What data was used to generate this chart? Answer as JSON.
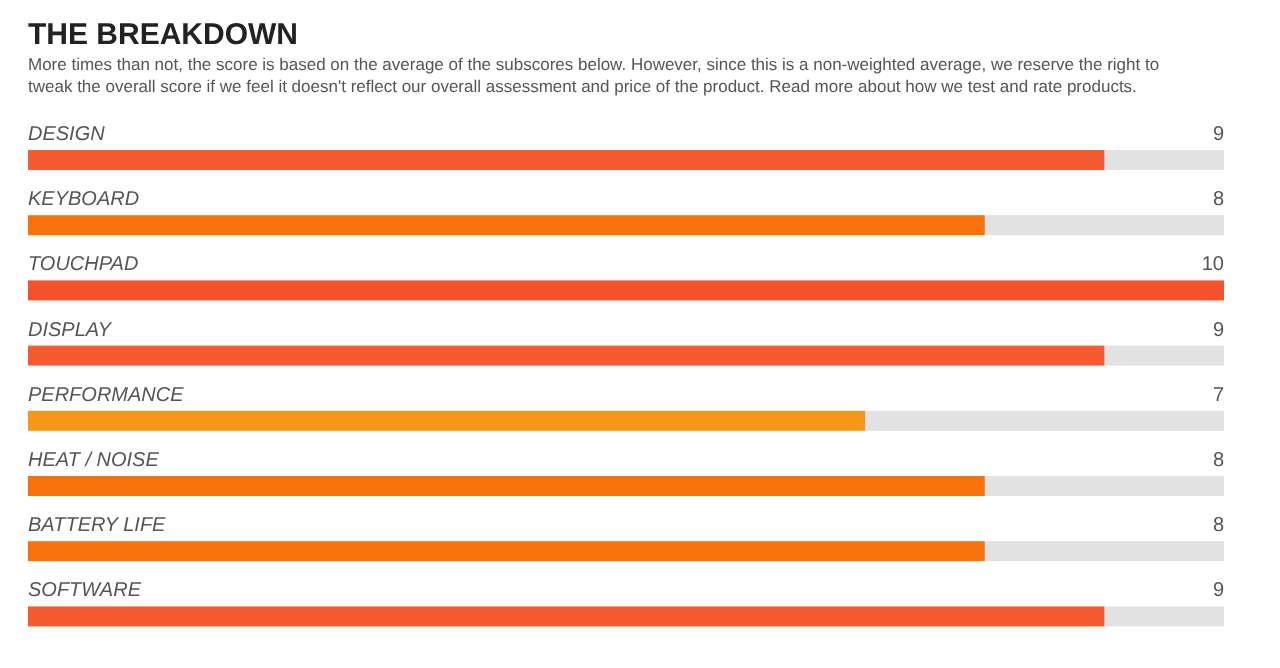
{
  "chart_data": {
    "type": "bar",
    "orientation": "horizontal",
    "title": "THE BREAKDOWN",
    "subtitle": "More times than not, the score is based on the average of the subscores below. However, since this is a non-weighted average, we reserve the right to tweak the overall score if we feel it doesn't reflect our overall assessment and price of the product. Read more about how we test and rate products.",
    "categories": [
      "DESIGN",
      "KEYBOARD",
      "TOUCHPAD",
      "DISPLAY",
      "PERFORMANCE",
      "HEAT / NOISE",
      "BATTERY LIFE",
      "SOFTWARE"
    ],
    "values": [
      9,
      8,
      10,
      9,
      7,
      8,
      8,
      9
    ],
    "colors": [
      "#f55b2e",
      "#f7720a",
      "#f2522c",
      "#f55b2e",
      "#f8961a",
      "#f7720a",
      "#f7720a",
      "#f55b2e"
    ],
    "xlim": [
      0,
      10
    ],
    "data_labels": true
  }
}
